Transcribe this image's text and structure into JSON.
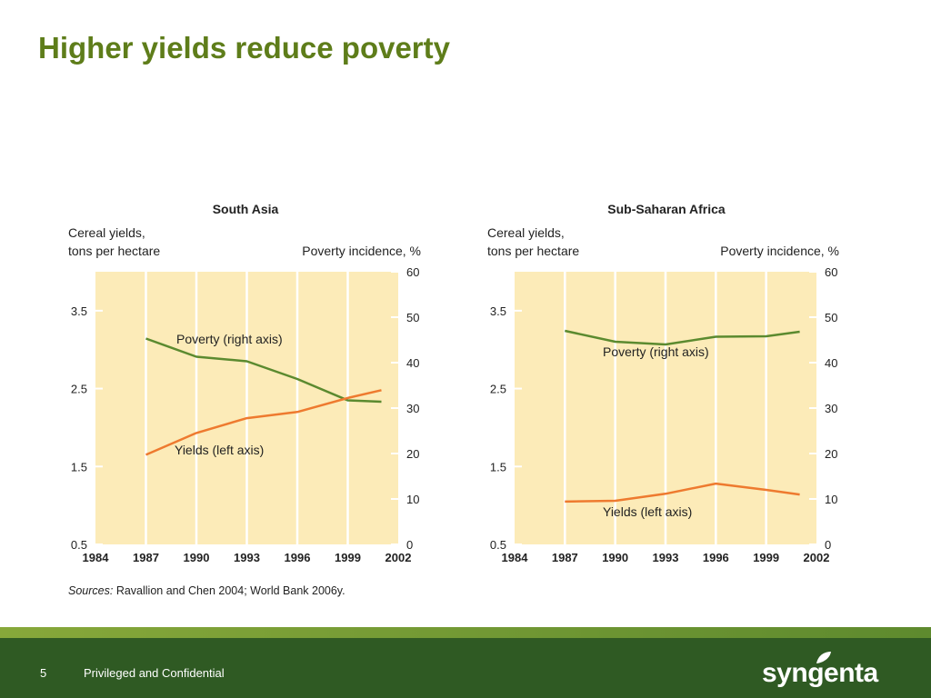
{
  "slide": {
    "title": "Higher yields reduce poverty",
    "number": "5",
    "footer": "Privileged and Confidential",
    "brand": "syngenta"
  },
  "colors": {
    "title": "#5e7d1a",
    "poverty_line": "#5b8a2f",
    "yields_line": "#ee7a2f",
    "panel_bg": "#fcebb8",
    "footer_band": "#2f5a23"
  },
  "source_note": {
    "prefix": "Sources:",
    "text": " Ravallion and Chen 2004; World Bank 2006y."
  },
  "chart_data": [
    {
      "type": "line",
      "title": "South Asia",
      "ylabel_left_1": "Cereal yields,",
      "ylabel_left_2": "tons per hectare",
      "ylabel_right": "Poverty incidence, %",
      "x_ticks": [
        "1984",
        "1987",
        "1990",
        "1993",
        "1996",
        "1999",
        "2002"
      ],
      "xlim": [
        1984,
        2002
      ],
      "ylim_left": [
        0.5,
        4.0
      ],
      "ylim_right": [
        0,
        60
      ],
      "left_ticks": [
        "0.5",
        "1.5",
        "2.5",
        "3.5"
      ],
      "right_ticks": [
        "0",
        "10",
        "20",
        "30",
        "40",
        "50",
        "60"
      ],
      "grid": "vertical",
      "series": [
        {
          "name": "Poverty (right axis)",
          "axis": "right",
          "x": [
            1987,
            1990,
            1993,
            1996,
            1999,
            2001
          ],
          "values": [
            45.3,
            41.3,
            40.3,
            36.4,
            31.7,
            31.4
          ]
        },
        {
          "name": "Yields (left axis)",
          "axis": "left",
          "x": [
            1987,
            1990,
            1993,
            1996,
            1999,
            2001
          ],
          "values": [
            1.65,
            1.93,
            2.12,
            2.2,
            2.38,
            2.48
          ]
        }
      ]
    },
    {
      "type": "line",
      "title": "Sub-Saharan Africa",
      "ylabel_left_1": "Cereal yields,",
      "ylabel_left_2": "tons per hectare",
      "ylabel_right": "Poverty incidence, %",
      "x_ticks": [
        "1984",
        "1987",
        "1990",
        "1993",
        "1996",
        "1999",
        "2002"
      ],
      "xlim": [
        1984,
        2002
      ],
      "ylim_left": [
        0.5,
        4.0
      ],
      "ylim_right": [
        0,
        60
      ],
      "left_ticks": [
        "0.5",
        "1.5",
        "2.5",
        "3.5"
      ],
      "right_ticks": [
        "0",
        "10",
        "20",
        "30",
        "40",
        "50",
        "60"
      ],
      "grid": "vertical",
      "series": [
        {
          "name": "Poverty (right axis)",
          "axis": "right",
          "x": [
            1987,
            1990,
            1993,
            1996,
            1999,
            2001
          ],
          "values": [
            47,
            44.6,
            44.0,
            45.7,
            45.8,
            46.8
          ]
        },
        {
          "name": "Yields (left axis)",
          "axis": "left",
          "x": [
            1987,
            1990,
            1993,
            1996,
            1999,
            2001
          ],
          "values": [
            1.05,
            1.06,
            1.15,
            1.28,
            1.2,
            1.14
          ]
        }
      ]
    }
  ]
}
